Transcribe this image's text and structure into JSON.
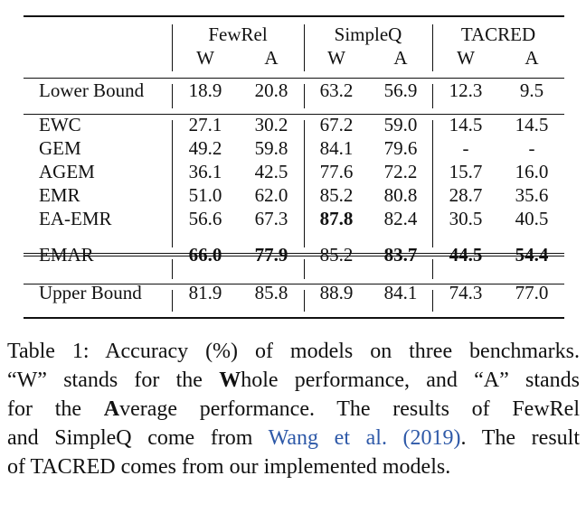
{
  "table": {
    "groups": [
      "FewRel",
      "SimpleQ",
      "TACRED"
    ],
    "subheaders": [
      "W",
      "A",
      "W",
      "A",
      "W",
      "A"
    ],
    "rows": [
      {
        "label": "Lower Bound",
        "values": [
          "18.9",
          "20.8",
          "63.2",
          "56.9",
          "12.3",
          "9.5"
        ],
        "bold": []
      },
      {
        "label": "EWC",
        "values": [
          "27.1",
          "30.2",
          "67.2",
          "59.0",
          "14.5",
          "14.5"
        ],
        "bold": []
      },
      {
        "label": "GEM",
        "values": [
          "49.2",
          "59.8",
          "84.1",
          "79.6",
          "-",
          "-"
        ],
        "bold": []
      },
      {
        "label": "AGEM",
        "values": [
          "36.1",
          "42.5",
          "77.6",
          "72.2",
          "15.7",
          "16.0"
        ],
        "bold": []
      },
      {
        "label": "EMR",
        "values": [
          "51.0",
          "62.0",
          "85.2",
          "80.8",
          "28.7",
          "35.6"
        ],
        "bold": []
      },
      {
        "label": "EA-EMR",
        "values": [
          "56.6",
          "67.3",
          "87.8",
          "82.4",
          "30.5",
          "40.5"
        ],
        "bold": [
          2
        ]
      },
      {
        "label": "EMAR",
        "values": [
          "66.0",
          "77.9",
          "85.2",
          "83.7",
          "44.5",
          "54.4"
        ],
        "bold": [
          0,
          1,
          3,
          4,
          5
        ]
      },
      {
        "label": "Upper Bound",
        "values": [
          "81.9",
          "85.8",
          "88.9",
          "84.1",
          "74.3",
          "77.0"
        ],
        "bold": []
      }
    ]
  },
  "caption": {
    "l1": "Table 1: Accuracy (%) of models on three benchmarks.",
    "l2_a": "“W” stands for the ",
    "l2_b": "W",
    "l2_c": "hole performance, and “A” stands",
    "l3_a": "for the ",
    "l3_b": "A",
    "l3_c": "verage performance.  The results of FewRel",
    "l4_a": "and SimpleQ come from ",
    "l4_cite": "Wang et al. (2019)",
    "l4_b": ". The result",
    "l5": "of TACRED comes from our implemented models."
  }
}
